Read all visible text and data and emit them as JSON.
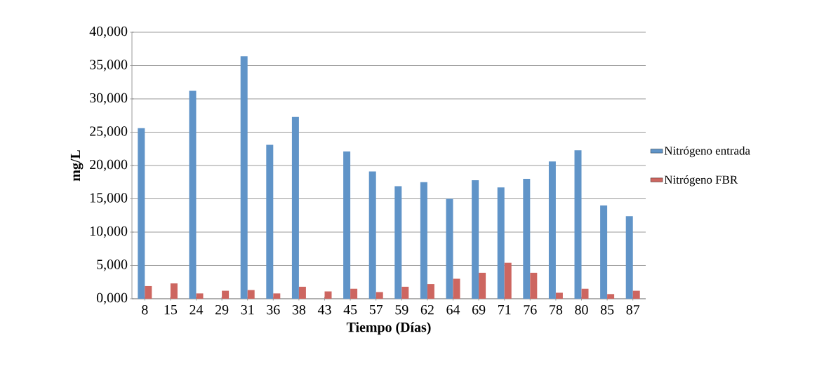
{
  "chart_data": {
    "type": "bar",
    "xlabel": "Tiempo (Días)",
    "ylabel": "mg/L",
    "categories": [
      "8",
      "15",
      "24",
      "29",
      "31",
      "36",
      "38",
      "43",
      "45",
      "57",
      "59",
      "62",
      "64",
      "69",
      "71",
      "76",
      "78",
      "80",
      "85",
      "87"
    ],
    "series": [
      {
        "name": "Nitrógeno entrada",
        "color": "#6094c8",
        "values": [
          25600,
          null,
          31200,
          null,
          36400,
          23100,
          27300,
          null,
          22100,
          19100,
          16900,
          17500,
          15000,
          17800,
          16700,
          18000,
          20600,
          22300,
          14000,
          12400
        ]
      },
      {
        "name": "Nitrógeno FBR",
        "color": "#cd6660",
        "values": [
          1900,
          2300,
          800,
          1200,
          1300,
          800,
          1800,
          1100,
          1500,
          1000,
          1800,
          2200,
          3000,
          3900,
          5400,
          3900,
          900,
          1500,
          700,
          1200
        ]
      }
    ],
    "ylim": [
      0,
      40000
    ],
    "yticks": [
      {
        "value": 0,
        "label": "0,000"
      },
      {
        "value": 5000,
        "label": "5,000"
      },
      {
        "value": 10000,
        "label": "10,000"
      },
      {
        "value": 15000,
        "label": "15,000"
      },
      {
        "value": 20000,
        "label": "20,000"
      },
      {
        "value": 25000,
        "label": "25,000"
      },
      {
        "value": 30000,
        "label": "30,000"
      },
      {
        "value": 35000,
        "label": "35,000"
      },
      {
        "value": 40000,
        "label": "40,000"
      }
    ],
    "grid": "y",
    "legend": "right"
  }
}
